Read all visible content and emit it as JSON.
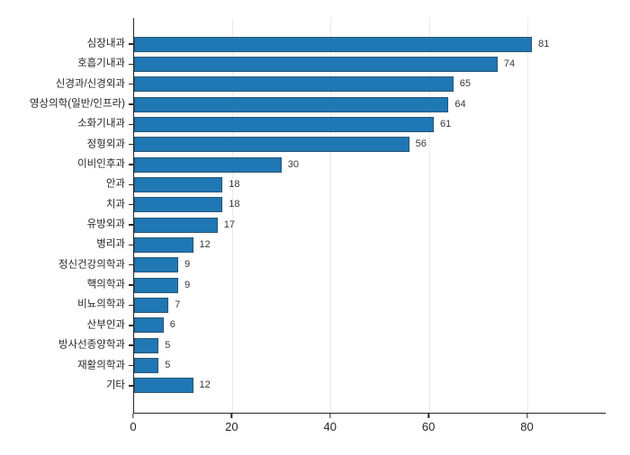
{
  "chart_data": {
    "type": "bar",
    "orientation": "horizontal",
    "title": "",
    "xlabel": "",
    "ylabel": "",
    "categories": [
      "심장내과",
      "호흡기내과",
      "신경과/신경외과",
      "영상의학(일반/인프라)",
      "소화기내과",
      "정형외과",
      "이비인후과",
      "안과",
      "치과",
      "유방외과",
      "병리과",
      "정신건강의학과",
      "핵의학과",
      "비뇨의학과",
      "산부인과",
      "방사선종양학과",
      "재활의학과",
      "기타"
    ],
    "values": [
      81,
      74,
      65,
      64,
      61,
      56,
      30,
      18,
      18,
      17,
      12,
      9,
      9,
      7,
      6,
      5,
      5,
      12
    ],
    "value_labels_shown": true,
    "xlim": [
      0,
      96
    ],
    "xticks": [
      0,
      20,
      40,
      60,
      80
    ],
    "grid": true,
    "legend": "none",
    "colors": {
      "bar_fill": "#1f77b4",
      "bar_edge": "#2a5674",
      "gridline": "#ebebeb",
      "spine": "#262626",
      "tick_label": "#262626",
      "value_label": "#383838",
      "background": "#ffffff"
    }
  }
}
